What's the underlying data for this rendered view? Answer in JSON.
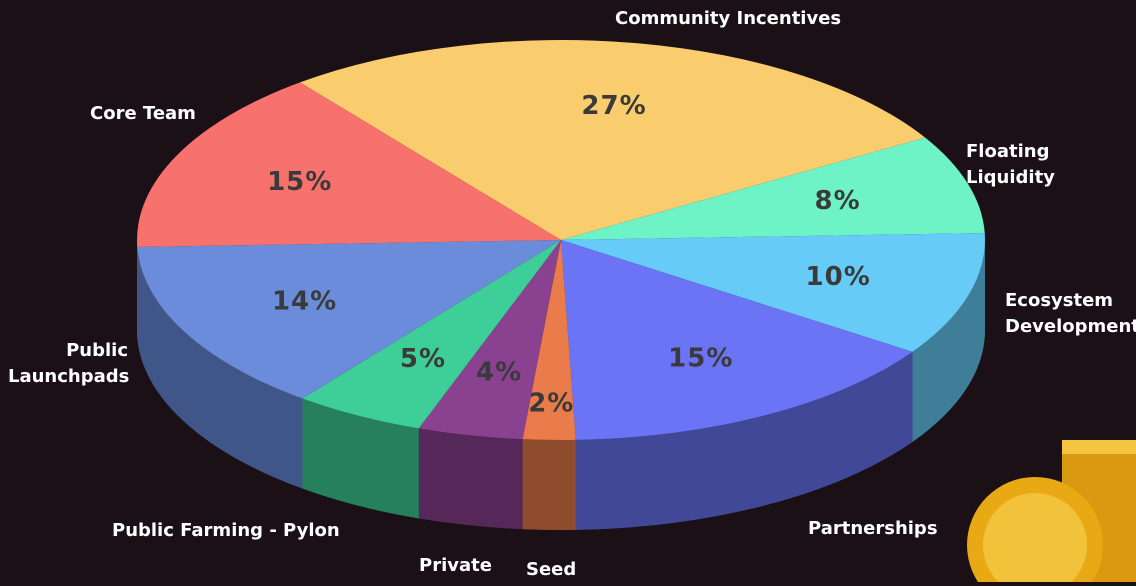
{
  "chart_data": {
    "type": "pie",
    "categories": [
      "Community Incentives",
      "Floating Liquidity",
      "Ecosystem Development",
      "Partnerships",
      "Seed",
      "Private",
      "Public Farming - Pylon",
      "Public Launchpads",
      "Core Team"
    ],
    "values": [
      27,
      8,
      10,
      15,
      2,
      4,
      5,
      14,
      15
    ],
    "value_labels": [
      "27%",
      "8%",
      "10%",
      "15%",
      "2%",
      "4%",
      "5%",
      "14%",
      "15%"
    ],
    "colors": [
      "#f9cc6e",
      "#6ef3c6",
      "#66cbf6",
      "#6a74f4",
      "#e97c4a",
      "#8a4290",
      "#3ecf98",
      "#6a8cdb",
      "#f7716d"
    ]
  }
}
